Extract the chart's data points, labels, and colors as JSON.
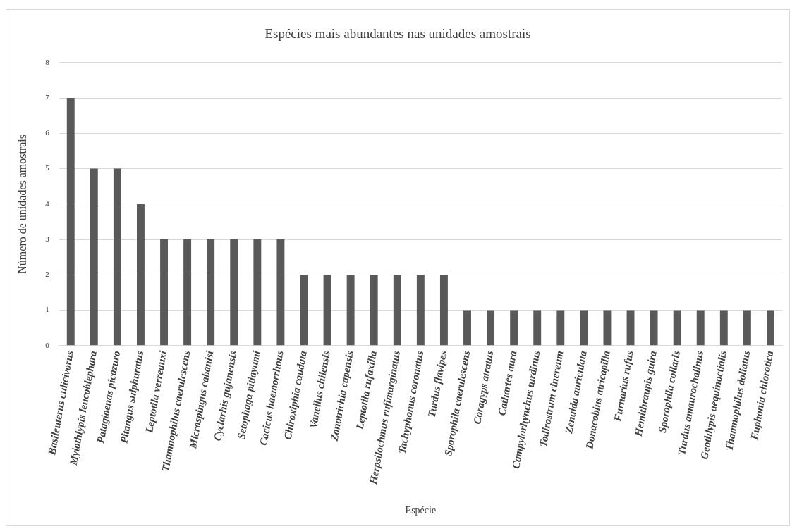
{
  "chart_data": {
    "type": "bar",
    "title": "Espécies mais abundantes nas unidades amostrais",
    "xlabel": "Espécie",
    "ylabel": "Número de unidades amostrais",
    "categories": [
      "Basileuterus culicivorus",
      "Myiothlypis leucoblephara",
      "Patagioenas picazuro",
      "Pitangus sulphuratus",
      "Leptotila verreauxi",
      "Thamnophilus caerulescens",
      "Microspingus cabanisi",
      "Cyclarhis gujanensis",
      "Setophaga pitiayumi",
      "Cacicus haemorrhous",
      "Chiroxiphia caudata",
      "Vanellus chilensis",
      "Zonotrichia capensis",
      "Leptotila rufaxilla",
      "Herpsilochmus rufimarginatus",
      "Tachyphonus coronatus",
      "Turdus flavipes",
      "Sporophila caerulescens",
      "Coragyps atratus",
      "Cathartes aura",
      "Campylorhynchus turdinus",
      "Todirostrum cinereum",
      "Zenaida auriculata",
      "Donacobius atricapilla",
      "Furnarius rufus",
      "Hemithraupis guira",
      "Sporophila collaris",
      "Turdus amaurochalinus",
      "Geothlypis aequinoctialis",
      "Thamnophilus doliatus",
      "Euphonia chlorotica"
    ],
    "values": [
      7,
      5,
      5,
      4,
      3,
      3,
      3,
      3,
      3,
      3,
      2,
      2,
      2,
      2,
      2,
      2,
      2,
      1,
      1,
      1,
      1,
      1,
      1,
      1,
      1,
      1,
      1,
      1,
      1,
      1,
      1
    ],
    "color": "#595959",
    "ylim": [
      0,
      8
    ],
    "yticks": [
      0,
      1,
      2,
      3,
      4,
      5,
      6,
      7,
      8
    ],
    "grid": "y",
    "legend": false
  }
}
